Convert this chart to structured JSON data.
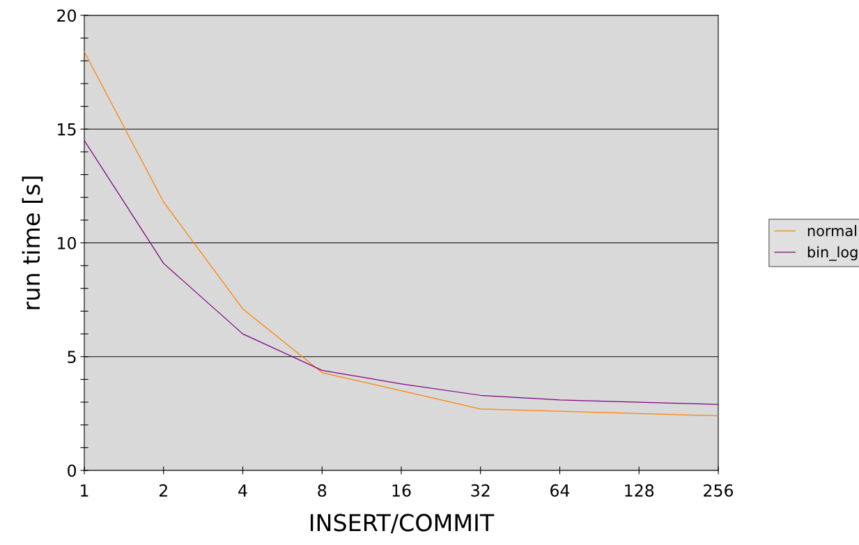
{
  "chart_data": {
    "type": "line",
    "xlabel": "INSERT/COMMIT",
    "ylabel": "run time [s]",
    "categories": [
      "1",
      "2",
      "4",
      "8",
      "16",
      "32",
      "64",
      "128",
      "256"
    ],
    "series": [
      {
        "name": "normal",
        "color": "#ff8000",
        "values": [
          18.4,
          11.8,
          7.1,
          4.3,
          3.5,
          2.7,
          2.6,
          2.5,
          2.4
        ]
      },
      {
        "name": "bin_log",
        "color": "#800080",
        "values": [
          14.5,
          9.1,
          6.0,
          4.4,
          3.8,
          3.3,
          3.1,
          3.0,
          2.9
        ]
      }
    ],
    "ylim": [
      0,
      20
    ],
    "yticks": [
      0,
      {
        "value": 1,
        "label": null
      },
      {
        "value": 2,
        "label": null
      },
      {
        "value": 3,
        "label": null
      },
      {
        "value": 4,
        "label": null
      },
      5,
      {
        "value": 6,
        "label": null
      },
      {
        "value": 7,
        "label": null
      },
      {
        "value": 8,
        "label": null
      },
      {
        "value": 9,
        "label": null
      },
      10,
      {
        "value": 11,
        "label": null
      },
      {
        "value": 12,
        "label": null
      },
      {
        "value": 13,
        "label": null
      },
      {
        "value": 14,
        "label": null
      },
      15,
      {
        "value": 16,
        "label": null
      },
      {
        "value": 17,
        "label": null
      },
      {
        "value": 18,
        "label": null
      },
      {
        "value": 19,
        "label": null
      },
      20
    ],
    "grid": "y",
    "legend": "right",
    "marker": "none",
    "line_style": "solid"
  }
}
